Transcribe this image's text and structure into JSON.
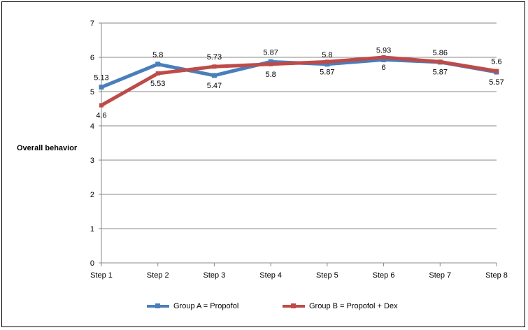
{
  "chart_data": {
    "type": "line",
    "categories": [
      "Step 1",
      "Step 2",
      "Step 3",
      "Step 4",
      "Step 5",
      "Step 6",
      "Step 7",
      "Step 8"
    ],
    "series": [
      {
        "name": "Group A = Propofol",
        "color": "#4a7ebb",
        "values": [
          5.13,
          5.8,
          5.47,
          5.87,
          5.8,
          5.93,
          5.86,
          5.57
        ]
      },
      {
        "name": "Group B = Propofol + Dex",
        "color": "#be4b48",
        "values": [
          4.6,
          5.53,
          5.73,
          5.8,
          5.87,
          6,
          5.87,
          5.6
        ]
      }
    ],
    "ylabel": "Overall behavior",
    "xlabel": "",
    "ylim": [
      0,
      7
    ],
    "yticks": [
      0,
      1,
      2,
      3,
      4,
      5,
      6,
      7
    ],
    "grid": true,
    "legend": "bottom"
  }
}
